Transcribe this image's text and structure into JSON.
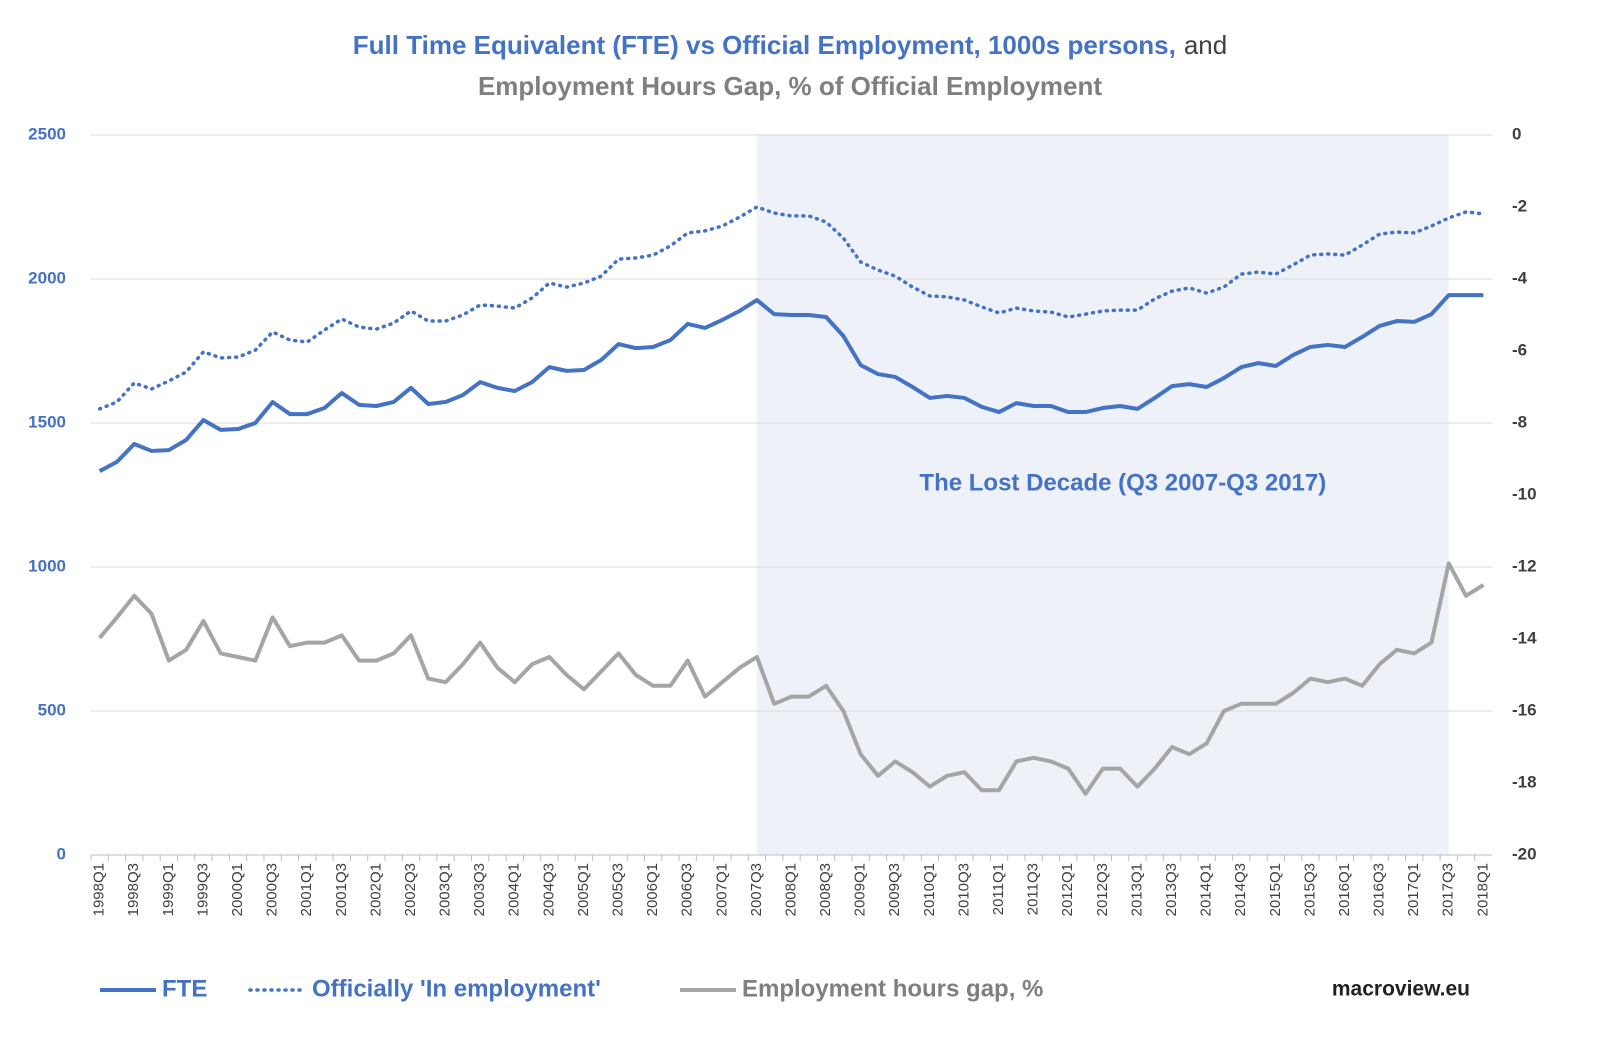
{
  "chart_data": {
    "type": "line",
    "title": [
      "Full Time Equivalent (FTE) vs Official Employment, 1000s persons,",
      "and"
    ],
    "subtitle": "Employment Hours Gap, % of Official Employment",
    "annotation": "The Lost Decade (Q3 2007-Q3 2017)",
    "source": "macroview.eu",
    "shade": [
      "2007Q3",
      "2017Q3"
    ],
    "shade_color": "#eef2f8",
    "grid": true,
    "legend": "bottom",
    "ylim": [
      0,
      2500
    ],
    "yticks": [
      0,
      500,
      1000,
      1500,
      2000,
      2500
    ],
    "y2lim": [
      -20,
      0
    ],
    "y2ticks": [
      -20,
      -18,
      -16,
      -14,
      -12,
      -10,
      -8,
      -6,
      -4,
      -2,
      0
    ],
    "categories": [
      "1998Q1",
      null,
      "1998Q3",
      null,
      "1999Q1",
      null,
      "1999Q3",
      null,
      "2000Q1",
      null,
      "2000Q3",
      null,
      "2001Q1",
      null,
      "2001Q3",
      null,
      "2002Q1",
      null,
      "2002Q3",
      null,
      "2003Q1",
      null,
      "2003Q3",
      null,
      "2004Q1",
      null,
      "2004Q3",
      null,
      "2005Q1",
      null,
      "2005Q3",
      null,
      "2006Q1",
      null,
      "2006Q3",
      null,
      "2007Q1",
      null,
      "2007Q3",
      null,
      "2008Q1",
      null,
      "2008Q3",
      null,
      "2009Q1",
      null,
      "2009Q3",
      null,
      "2010Q1",
      null,
      "2010Q3",
      null,
      "2011Q1",
      null,
      "2011Q3",
      null,
      "2012Q1",
      null,
      "2012Q3",
      null,
      "2013Q1",
      null,
      "2013Q3",
      null,
      "2014Q1",
      null,
      "2014Q3",
      null,
      "2015Q1",
      null,
      "2015Q3",
      null,
      "2016Q1",
      null,
      "2016Q3",
      null,
      "2017Q1",
      null,
      "2017Q3",
      null,
      "2018Q1"
    ],
    "series": [
      {
        "name": "FTE",
        "color": "#4472c4",
        "style": "solid",
        "values": [
          1333,
          1365,
          1427,
          1403,
          1406,
          1441,
          1510,
          1476,
          1479,
          1500,
          1573,
          1531,
          1531,
          1552,
          1604,
          1563,
          1559,
          1573,
          1622,
          1566,
          1573,
          1597,
          1642,
          1622,
          1611,
          1642,
          1694,
          1681,
          1684,
          1719,
          1774,
          1760,
          1764,
          1788,
          1844,
          1830,
          1858,
          1889,
          1927,
          1878,
          1875,
          1875,
          1868,
          1802,
          1701,
          1670,
          1660,
          1625,
          1587,
          1594,
          1587,
          1556,
          1538,
          1569,
          1559,
          1559,
          1538,
          1538,
          1552,
          1559,
          1549,
          1587,
          1628,
          1635,
          1625,
          1656,
          1694,
          1708,
          1698,
          1736,
          1764,
          1771,
          1764,
          1799,
          1837,
          1854,
          1851,
          1878,
          1944,
          1944,
          1944
        ]
      },
      {
        "name": "Officially 'In employment'",
        "color": "#4472c4",
        "style": "dotted",
        "values": [
          1549,
          1573,
          1639,
          1618,
          1646,
          1677,
          1747,
          1726,
          1729,
          1753,
          1816,
          1788,
          1781,
          1823,
          1861,
          1833,
          1826,
          1847,
          1889,
          1854,
          1854,
          1875,
          1910,
          1906,
          1899,
          1934,
          1986,
          1972,
          1986,
          2010,
          2069,
          2073,
          2083,
          2115,
          2160,
          2167,
          2184,
          2215,
          2250,
          2229,
          2219,
          2219,
          2198,
          2142,
          2059,
          2031,
          2010,
          1972,
          1941,
          1938,
          1927,
          1903,
          1882,
          1899,
          1889,
          1885,
          1868,
          1878,
          1889,
          1892,
          1892,
          1931,
          1958,
          1969,
          1951,
          1972,
          2017,
          2024,
          2017,
          2049,
          2083,
          2087,
          2083,
          2118,
          2156,
          2163,
          2160,
          2184,
          2212,
          2233,
          2226
        ]
      },
      {
        "name": "Employment hours gap, %",
        "color": "#a5a5a5",
        "style": "solid",
        "axis": "y2",
        "values": [
          -13.97,
          -13.4,
          -12.8,
          -13.3,
          -14.6,
          -14.3,
          -13.5,
          -14.4,
          -14.5,
          -14.6,
          -13.4,
          -14.2,
          -14.1,
          -14.1,
          -13.9,
          -14.6,
          -14.6,
          -14.4,
          -13.9,
          -15.1,
          -15.2,
          -14.7,
          -14.1,
          -14.8,
          -15.2,
          -14.7,
          -14.5,
          -15.0,
          -15.4,
          -14.9,
          -14.4,
          -15.0,
          -15.3,
          -15.3,
          -14.6,
          -15.6,
          -15.2,
          -14.8,
          -14.5,
          -15.8,
          -15.6,
          -15.6,
          -15.3,
          -16.0,
          -17.2,
          -17.8,
          -17.4,
          -17.7,
          -18.1,
          -17.8,
          -17.7,
          -18.2,
          -18.2,
          -17.4,
          -17.3,
          -17.4,
          -17.6,
          -18.3,
          -17.6,
          -17.6,
          -18.1,
          -17.6,
          -17.0,
          -17.2,
          -16.9,
          -16.0,
          -15.8,
          -15.8,
          -15.8,
          -15.5,
          -15.1,
          -15.2,
          -15.1,
          -15.3,
          -14.7,
          -14.3,
          -14.4,
          -14.1,
          -11.9,
          -12.8,
          -12.5
        ]
      }
    ]
  }
}
